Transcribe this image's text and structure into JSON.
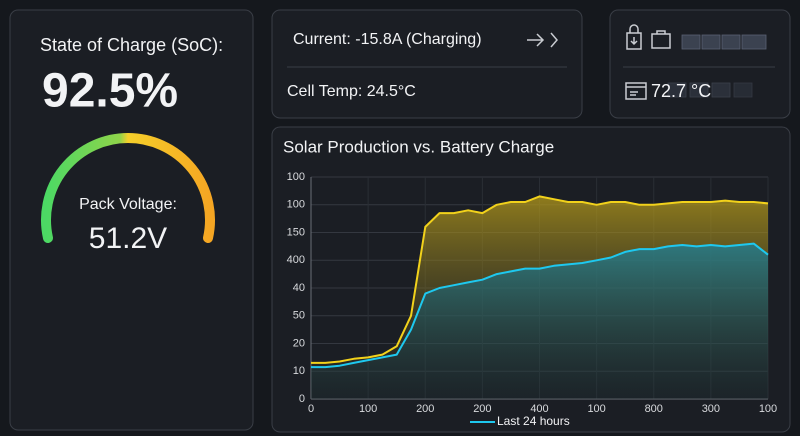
{
  "soc_card": {
    "label": "State of Charge (SoC):",
    "value": "92.5%",
    "voltage_label": "Pack Voltage:",
    "voltage": "51.2V"
  },
  "current_card": {
    "current": "Current: -15.8A (Charging)",
    "cell_temp": "Cell Temp: 24.5°C"
  },
  "status_card": {
    "temperature": "72.7 °C"
  },
  "chart_data": {
    "type": "line",
    "title": "Solar Production vs. Battery Charge",
    "x": [
      0,
      25,
      50,
      75,
      100,
      125,
      150,
      175,
      200,
      225,
      250,
      275,
      300,
      325,
      350,
      375,
      400,
      425,
      450,
      475,
      500,
      525,
      550,
      575,
      600,
      625,
      650,
      675,
      700,
      725,
      750,
      775,
      800
    ],
    "series": [
      {
        "color": "#f2d21b",
        "values": [
          13,
          13,
          13.5,
          14.5,
          15,
          16,
          19,
          30,
          62,
          67,
          67,
          68,
          67,
          70,
          71,
          71,
          73,
          72,
          71,
          71,
          70,
          71,
          71,
          70,
          70,
          70.5,
          71,
          71,
          71,
          71.5,
          71,
          71,
          70.5
        ]
      },
      {
        "name": "Last 24 hours",
        "color": "#1ec8ef",
        "values": [
          11.5,
          11.5,
          12,
          13,
          14,
          15,
          16,
          25,
          38,
          40,
          41,
          42,
          43,
          45,
          46,
          47,
          47,
          48,
          48.5,
          49,
          50,
          51,
          53,
          54,
          54,
          55,
          55.5,
          55,
          55.5,
          55,
          55.5,
          56,
          52
        ]
      }
    ],
    "xlim": [
      0,
      800
    ],
    "xticks": [
      0,
      100,
      200,
      {
        "value": 300,
        "label": "200"
      },
      {
        "value": 400,
        "label": "400"
      },
      {
        "value": 500,
        "label": "100"
      },
      {
        "value": 600,
        "label": "800"
      },
      {
        "value": 700,
        "label": "300"
      },
      {
        "value": 800,
        "label": "100"
      }
    ],
    "ylim": [
      0,
      80
    ],
    "yticks": [
      0,
      10,
      20,
      {
        "value": 30,
        "label": "50"
      },
      {
        "value": 40,
        "label": "40"
      },
      {
        "value": 50,
        "label": "400"
      },
      {
        "value": 60,
        "label": "150"
      },
      {
        "value": 70,
        "label": "100"
      },
      {
        "value": 80,
        "label": "100"
      }
    ],
    "grid": true
  }
}
